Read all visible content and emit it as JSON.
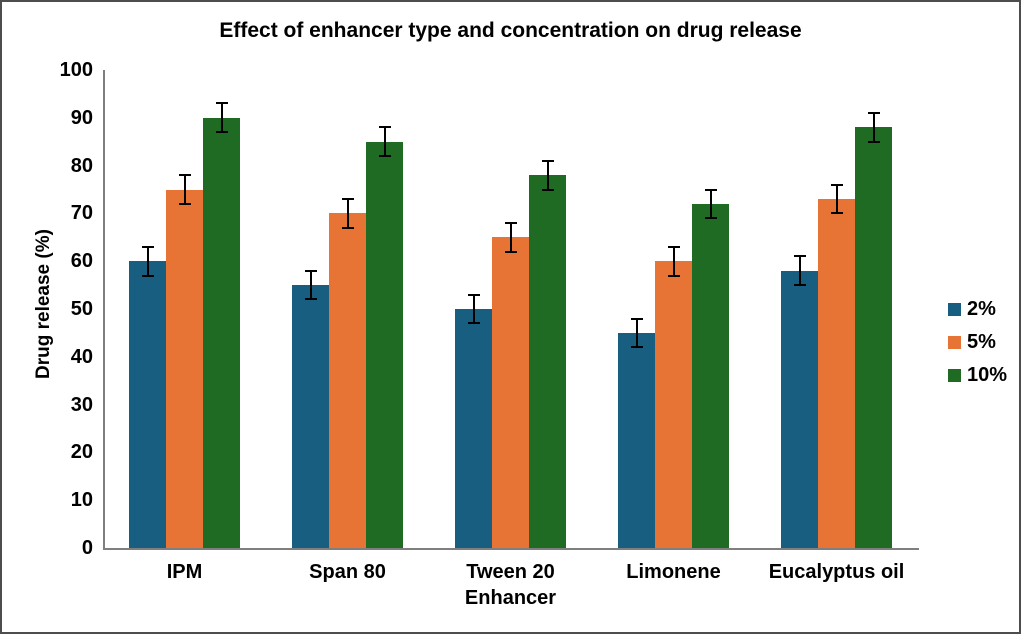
{
  "chart_data": {
    "type": "bar",
    "title": "Effect of enhancer type and concentration on drug release",
    "xlabel": "Enhancer",
    "ylabel": "Drug release (%)",
    "categories": [
      "IPM",
      "Span 80",
      "Tween 20",
      "Limonene",
      "Eucalyptus oil"
    ],
    "series": [
      {
        "name": "2%",
        "color": "#175E81",
        "values": [
          60,
          55,
          50,
          45,
          58
        ],
        "error": 3
      },
      {
        "name": "5%",
        "color": "#E77334",
        "values": [
          75,
          70,
          65,
          60,
          73
        ],
        "error": 3
      },
      {
        "name": "10%",
        "color": "#1F6B24",
        "values": [
          90,
          85,
          78,
          72,
          88
        ],
        "error": 3
      }
    ],
    "ylim": [
      0,
      100
    ],
    "yticks": [
      0,
      10,
      20,
      30,
      40,
      50,
      60,
      70,
      80,
      90,
      100
    ],
    "grid": "off",
    "legend_position": "right",
    "error_bar_color": "#000000",
    "axis_color": "#7f7f7f",
    "frame_border_color": "#4d4d4d",
    "background_color": "#ffffff"
  }
}
